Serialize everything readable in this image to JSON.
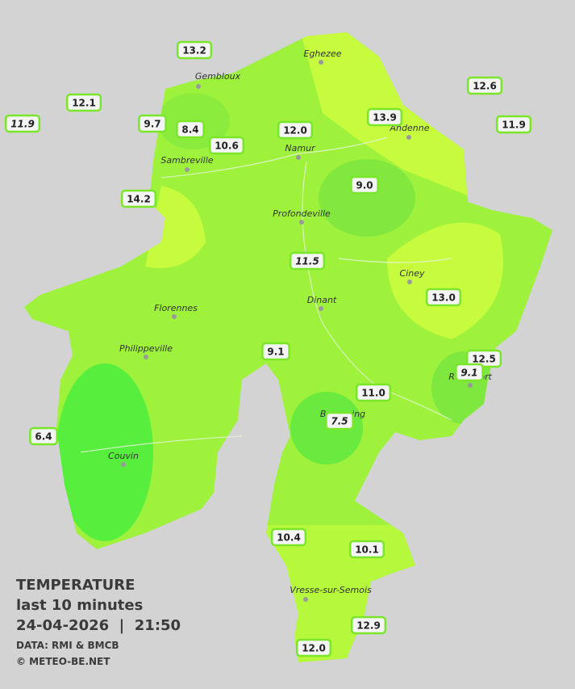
{
  "legend": {
    "title": "TEMPERATURE",
    "subtitle": "last 10 minutes",
    "datetime": "24-04-2026  |  21:50",
    "source": "DATA: RMI & BMCB",
    "copyright": "© METEO-BE.NET"
  },
  "cities": [
    "Eghezee",
    "Gembloux",
    "Andenne",
    "Namur",
    "Sambreville",
    "Profondeville",
    "Ciney",
    "Dinant",
    "Florennes",
    "Philippeville",
    "Rochefort",
    "Beauraing",
    "Couvin",
    "Vresse-sur-Semois"
  ],
  "stations": [
    "13.2",
    "12.1",
    "11.9",
    "9.7",
    "8.4",
    "10.6",
    "12.0",
    "13.9",
    "12.6",
    "11.9",
    "14.2",
    "9.0",
    "11.5",
    "13.0",
    "9.1",
    "12.5",
    "9.1",
    "11.0",
    "7.5",
    "6.4",
    "10.4",
    "10.1",
    "12.9",
    "12.0"
  ]
}
